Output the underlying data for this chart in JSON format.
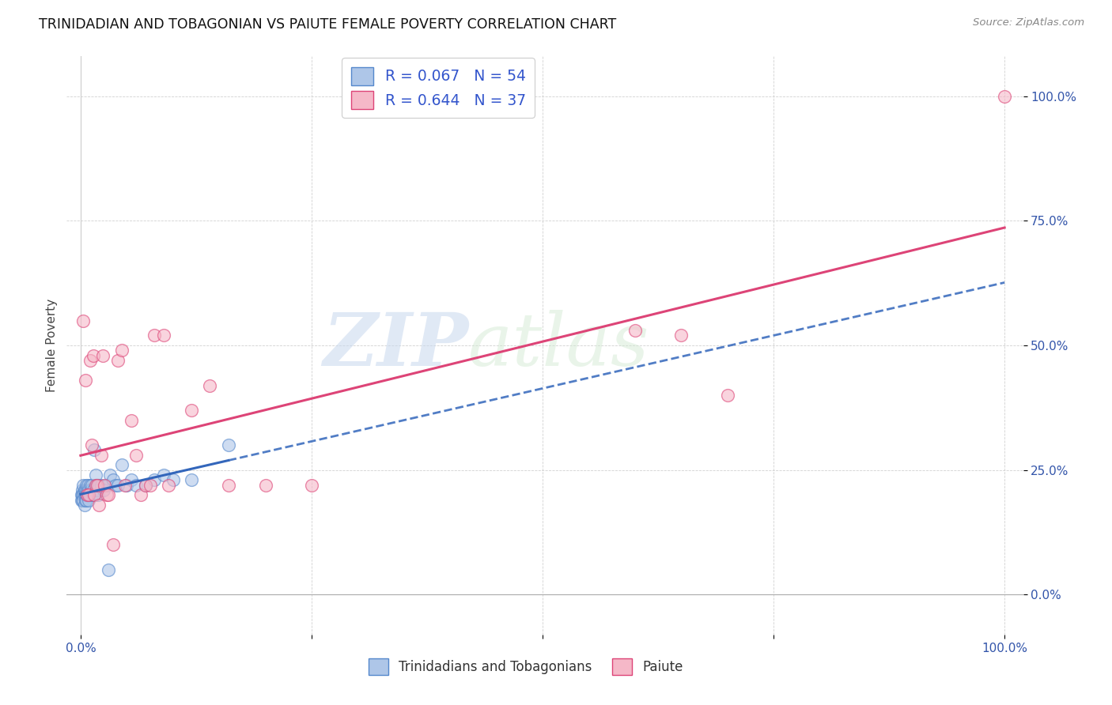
{
  "title": "TRINIDADIAN AND TOBAGONIAN VS PAIUTE FEMALE POVERTY CORRELATION CHART",
  "source": "Source: ZipAtlas.com",
  "ylabel": "Female Poverty",
  "ytick_labels": [
    "0.0%",
    "25.0%",
    "50.0%",
    "75.0%",
    "100.0%"
  ],
  "ytick_values": [
    0.0,
    0.25,
    0.5,
    0.75,
    1.0
  ],
  "legend_entries": [
    {
      "label": "Trinidadians and Tobagonians",
      "R": "0.067",
      "N": "54"
    },
    {
      "label": "Paiute",
      "R": "0.644",
      "N": "37"
    }
  ],
  "blue_scatter_color": "#aec6e8",
  "pink_scatter_color": "#f5b8c8",
  "blue_edge_color": "#5588cc",
  "pink_edge_color": "#dd4477",
  "blue_line_color": "#3366bb",
  "pink_line_color": "#dd4477",
  "watermark_zip": "ZIP",
  "watermark_atlas": "atlas",
  "blue_points_x": [
    0.001,
    0.001,
    0.002,
    0.002,
    0.002,
    0.003,
    0.003,
    0.003,
    0.004,
    0.004,
    0.004,
    0.005,
    0.005,
    0.005,
    0.006,
    0.006,
    0.006,
    0.007,
    0.007,
    0.008,
    0.008,
    0.009,
    0.009,
    0.01,
    0.01,
    0.011,
    0.012,
    0.013,
    0.014,
    0.015,
    0.015,
    0.016,
    0.017,
    0.018,
    0.019,
    0.02,
    0.022,
    0.025,
    0.028,
    0.03,
    0.032,
    0.035,
    0.038,
    0.04,
    0.045,
    0.05,
    0.055,
    0.06,
    0.07,
    0.08,
    0.09,
    0.1,
    0.12,
    0.16
  ],
  "blue_points_y": [
    0.2,
    0.19,
    0.21,
    0.2,
    0.19,
    0.22,
    0.2,
    0.19,
    0.21,
    0.2,
    0.18,
    0.21,
    0.2,
    0.19,
    0.22,
    0.2,
    0.19,
    0.21,
    0.2,
    0.22,
    0.2,
    0.21,
    0.19,
    0.22,
    0.2,
    0.21,
    0.22,
    0.2,
    0.21,
    0.29,
    0.2,
    0.24,
    0.22,
    0.21,
    0.2,
    0.22,
    0.22,
    0.21,
    0.22,
    0.05,
    0.24,
    0.23,
    0.22,
    0.22,
    0.26,
    0.22,
    0.23,
    0.22,
    0.22,
    0.23,
    0.24,
    0.23,
    0.23,
    0.3
  ],
  "pink_points_x": [
    0.003,
    0.005,
    0.007,
    0.009,
    0.01,
    0.012,
    0.014,
    0.015,
    0.016,
    0.018,
    0.02,
    0.022,
    0.024,
    0.026,
    0.028,
    0.03,
    0.035,
    0.04,
    0.045,
    0.048,
    0.055,
    0.06,
    0.065,
    0.07,
    0.075,
    0.08,
    0.09,
    0.095,
    0.12,
    0.14,
    0.16,
    0.2,
    0.25,
    0.6,
    0.65,
    0.7,
    1.0
  ],
  "pink_points_y": [
    0.55,
    0.43,
    0.2,
    0.2,
    0.47,
    0.3,
    0.48,
    0.2,
    0.22,
    0.22,
    0.18,
    0.28,
    0.48,
    0.22,
    0.2,
    0.2,
    0.1,
    0.47,
    0.49,
    0.22,
    0.35,
    0.28,
    0.2,
    0.22,
    0.22,
    0.52,
    0.52,
    0.22,
    0.37,
    0.42,
    0.22,
    0.22,
    0.22,
    0.53,
    0.52,
    0.4,
    1.0
  ]
}
